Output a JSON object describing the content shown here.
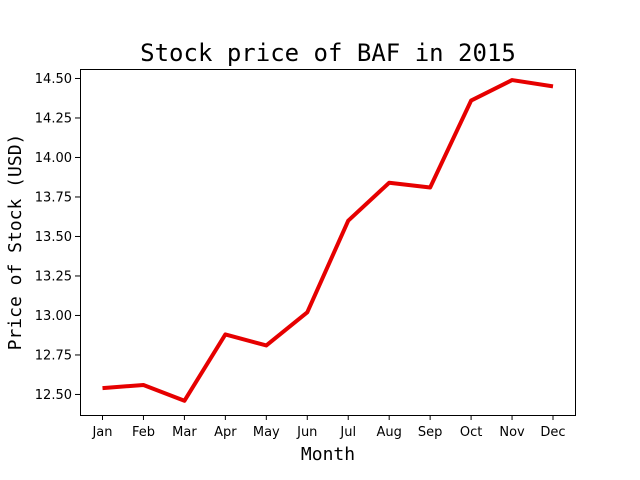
{
  "chart_data": {
    "type": "line",
    "title": "Stock price of BAF in 2015",
    "xlabel": "Month",
    "ylabel": "Price of Stock (USD)",
    "categories": [
      "Jan",
      "Feb",
      "Mar",
      "Apr",
      "May",
      "Jun",
      "Jul",
      "Aug",
      "Sep",
      "Oct",
      "Nov",
      "Dec"
    ],
    "values": [
      12.54,
      12.56,
      12.46,
      12.88,
      12.81,
      13.02,
      13.6,
      13.84,
      13.81,
      14.36,
      14.49,
      14.45
    ],
    "yticks": [
      "12.50",
      "12.75",
      "13.00",
      "13.25",
      "13.50",
      "13.75",
      "14.00",
      "14.25",
      "14.50"
    ],
    "ylim": [
      12.37,
      14.56
    ],
    "grid": false,
    "legend": "none",
    "line_color": "#e60000"
  }
}
